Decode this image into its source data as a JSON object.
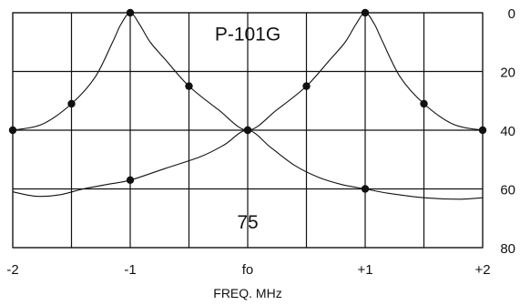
{
  "chart_data": {
    "type": "line",
    "title": "",
    "xlabel": "FREQ. MHz",
    "ylabel": "",
    "x_ticks": [
      {
        "value": -2,
        "label": "-2"
      },
      {
        "value": -1.5,
        "label": ""
      },
      {
        "value": -1,
        "label": "-1"
      },
      {
        "value": -0.5,
        "label": ""
      },
      {
        "value": 0,
        "label": "fo"
      },
      {
        "value": 0.5,
        "label": ""
      },
      {
        "value": 1,
        "label": "+1"
      },
      {
        "value": 1.5,
        "label": ""
      },
      {
        "value": 2,
        "label": "+2"
      }
    ],
    "y_ticks": [
      {
        "value": 0,
        "label": "0"
      },
      {
        "value": 20,
        "label": "20"
      },
      {
        "value": 40,
        "label": "40"
      },
      {
        "value": 60,
        "label": "60"
      },
      {
        "value": 80,
        "label": "80"
      }
    ],
    "xlim": [
      -2,
      2
    ],
    "ylim": [
      0,
      80
    ],
    "y_inverted": true,
    "y_axis_side": "right",
    "grid": true,
    "annotations": [
      {
        "text": "P-101G",
        "x": 0,
        "y": 7
      },
      {
        "text": "75",
        "x": 0,
        "y": 71
      }
    ],
    "series": [
      {
        "points": [
          [
            -2,
            40
          ],
          [
            -1.5,
            31
          ],
          [
            -1,
            0
          ],
          [
            -0.5,
            25
          ],
          [
            0,
            40
          ],
          [
            0.5,
            25
          ],
          [
            1,
            0
          ],
          [
            1.5,
            31
          ],
          [
            2,
            40
          ]
        ],
        "curve": [
          [
            -2,
            40
          ],
          [
            -1.75,
            38
          ],
          [
            -1.5,
            31
          ],
          [
            -1.3,
            22
          ],
          [
            -1.15,
            10
          ],
          [
            -1.08,
            4
          ],
          [
            -1,
            0
          ],
          [
            -0.92,
            4
          ],
          [
            -0.83,
            10
          ],
          [
            -0.7,
            16
          ],
          [
            -0.5,
            25
          ],
          [
            -0.25,
            33
          ],
          [
            0,
            40
          ],
          [
            0.25,
            33
          ],
          [
            0.5,
            25
          ],
          [
            0.7,
            16
          ],
          [
            0.83,
            10
          ],
          [
            0.92,
            4
          ],
          [
            1,
            0
          ],
          [
            1.08,
            4
          ],
          [
            1.15,
            10
          ],
          [
            1.3,
            22
          ],
          [
            1.5,
            31
          ],
          [
            1.75,
            38
          ],
          [
            2,
            40
          ]
        ],
        "color": "#111111"
      },
      {
        "points": [
          [
            -1,
            57
          ],
          [
            0,
            40
          ],
          [
            1,
            60
          ]
        ],
        "curve": [
          [
            -2,
            61
          ],
          [
            -1.8,
            62.5
          ],
          [
            -1.6,
            62
          ],
          [
            -1.4,
            60
          ],
          [
            -1.2,
            58.5
          ],
          [
            -1,
            57
          ],
          [
            -0.7,
            53
          ],
          [
            -0.4,
            49
          ],
          [
            -0.2,
            45
          ],
          [
            0,
            40
          ],
          [
            0.2,
            46
          ],
          [
            0.4,
            52
          ],
          [
            0.6,
            56
          ],
          [
            0.8,
            58.5
          ],
          [
            1,
            60
          ],
          [
            1.2,
            61.5
          ],
          [
            1.5,
            63
          ],
          [
            1.8,
            63.5
          ],
          [
            2,
            63
          ]
        ],
        "color": "#111111"
      }
    ]
  }
}
